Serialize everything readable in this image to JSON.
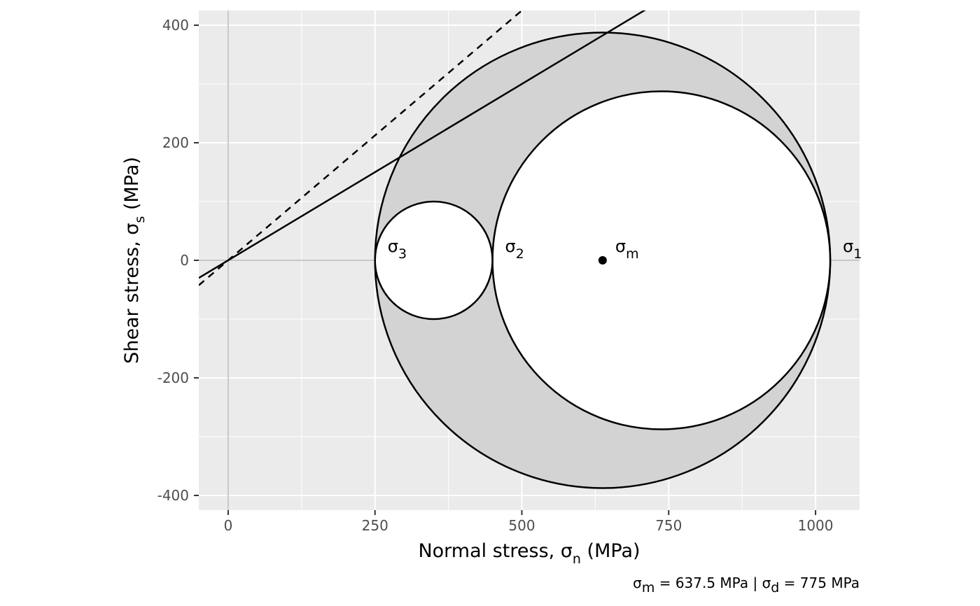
{
  "chart_data": {
    "type": "mohr-circle",
    "xlabel": {
      "main": "Normal stress, σ",
      "sub": "n",
      "unit": " (MPa)"
    },
    "ylabel": {
      "main": "Shear stress, σ",
      "sub": "s",
      "unit": " (MPa)"
    },
    "xlim": [
      -50,
      1075
    ],
    "ylim": [
      -425,
      425
    ],
    "x_ticks": [
      0,
      250,
      500,
      750,
      1000
    ],
    "x_tick_labels": [
      "0",
      "250",
      "500",
      "750",
      "1000"
    ],
    "y_ticks": [
      -400,
      -200,
      0,
      200,
      400
    ],
    "y_tick_labels": [
      "-400",
      "-200",
      "0",
      "200",
      "400"
    ],
    "grid": true,
    "stresses": {
      "sigma1": 1025,
      "sigma2": 450,
      "sigma3": 250,
      "sigma_m": 637.5
    },
    "circles": [
      {
        "name": "sigma1-sigma3",
        "center": 637.5,
        "radius": 387.5,
        "fill": "#d3d3d3"
      },
      {
        "name": "sigma1-sigma2",
        "center": 737.5,
        "radius": 287.5,
        "fill": "#ffffff"
      },
      {
        "name": "sigma2-sigma3",
        "center": 350,
        "radius": 100,
        "fill": "#ffffff"
      }
    ],
    "lines": [
      {
        "name": "failure-envelope",
        "style": "solid",
        "slope": 0.6,
        "intercept": 0
      },
      {
        "name": "sliding-line",
        "style": "dashed",
        "slope": 0.85,
        "intercept": 0
      }
    ],
    "point": {
      "x": 637.5,
      "y": 0
    },
    "labels": [
      {
        "main": "σ",
        "sub": "3",
        "x": 250
      },
      {
        "main": "σ",
        "sub": "2",
        "x": 450
      },
      {
        "main": "σ",
        "sub": "m",
        "x": 637.5
      },
      {
        "main": "σ",
        "sub": "1",
        "x": 1025
      }
    ],
    "caption": {
      "p1_main": "σ",
      "p1_sub": "m",
      "p1_rest": " = 637.5 MPa | ",
      "p2_main": "σ",
      "p2_sub": "d",
      "p2_rest": " = 775 MPa"
    },
    "colors": {
      "panel": "#ebebeb",
      "grid_major": "#ffffff",
      "zero_line": "#c8c8c8",
      "outer_fill": "#d3d3d3"
    }
  }
}
